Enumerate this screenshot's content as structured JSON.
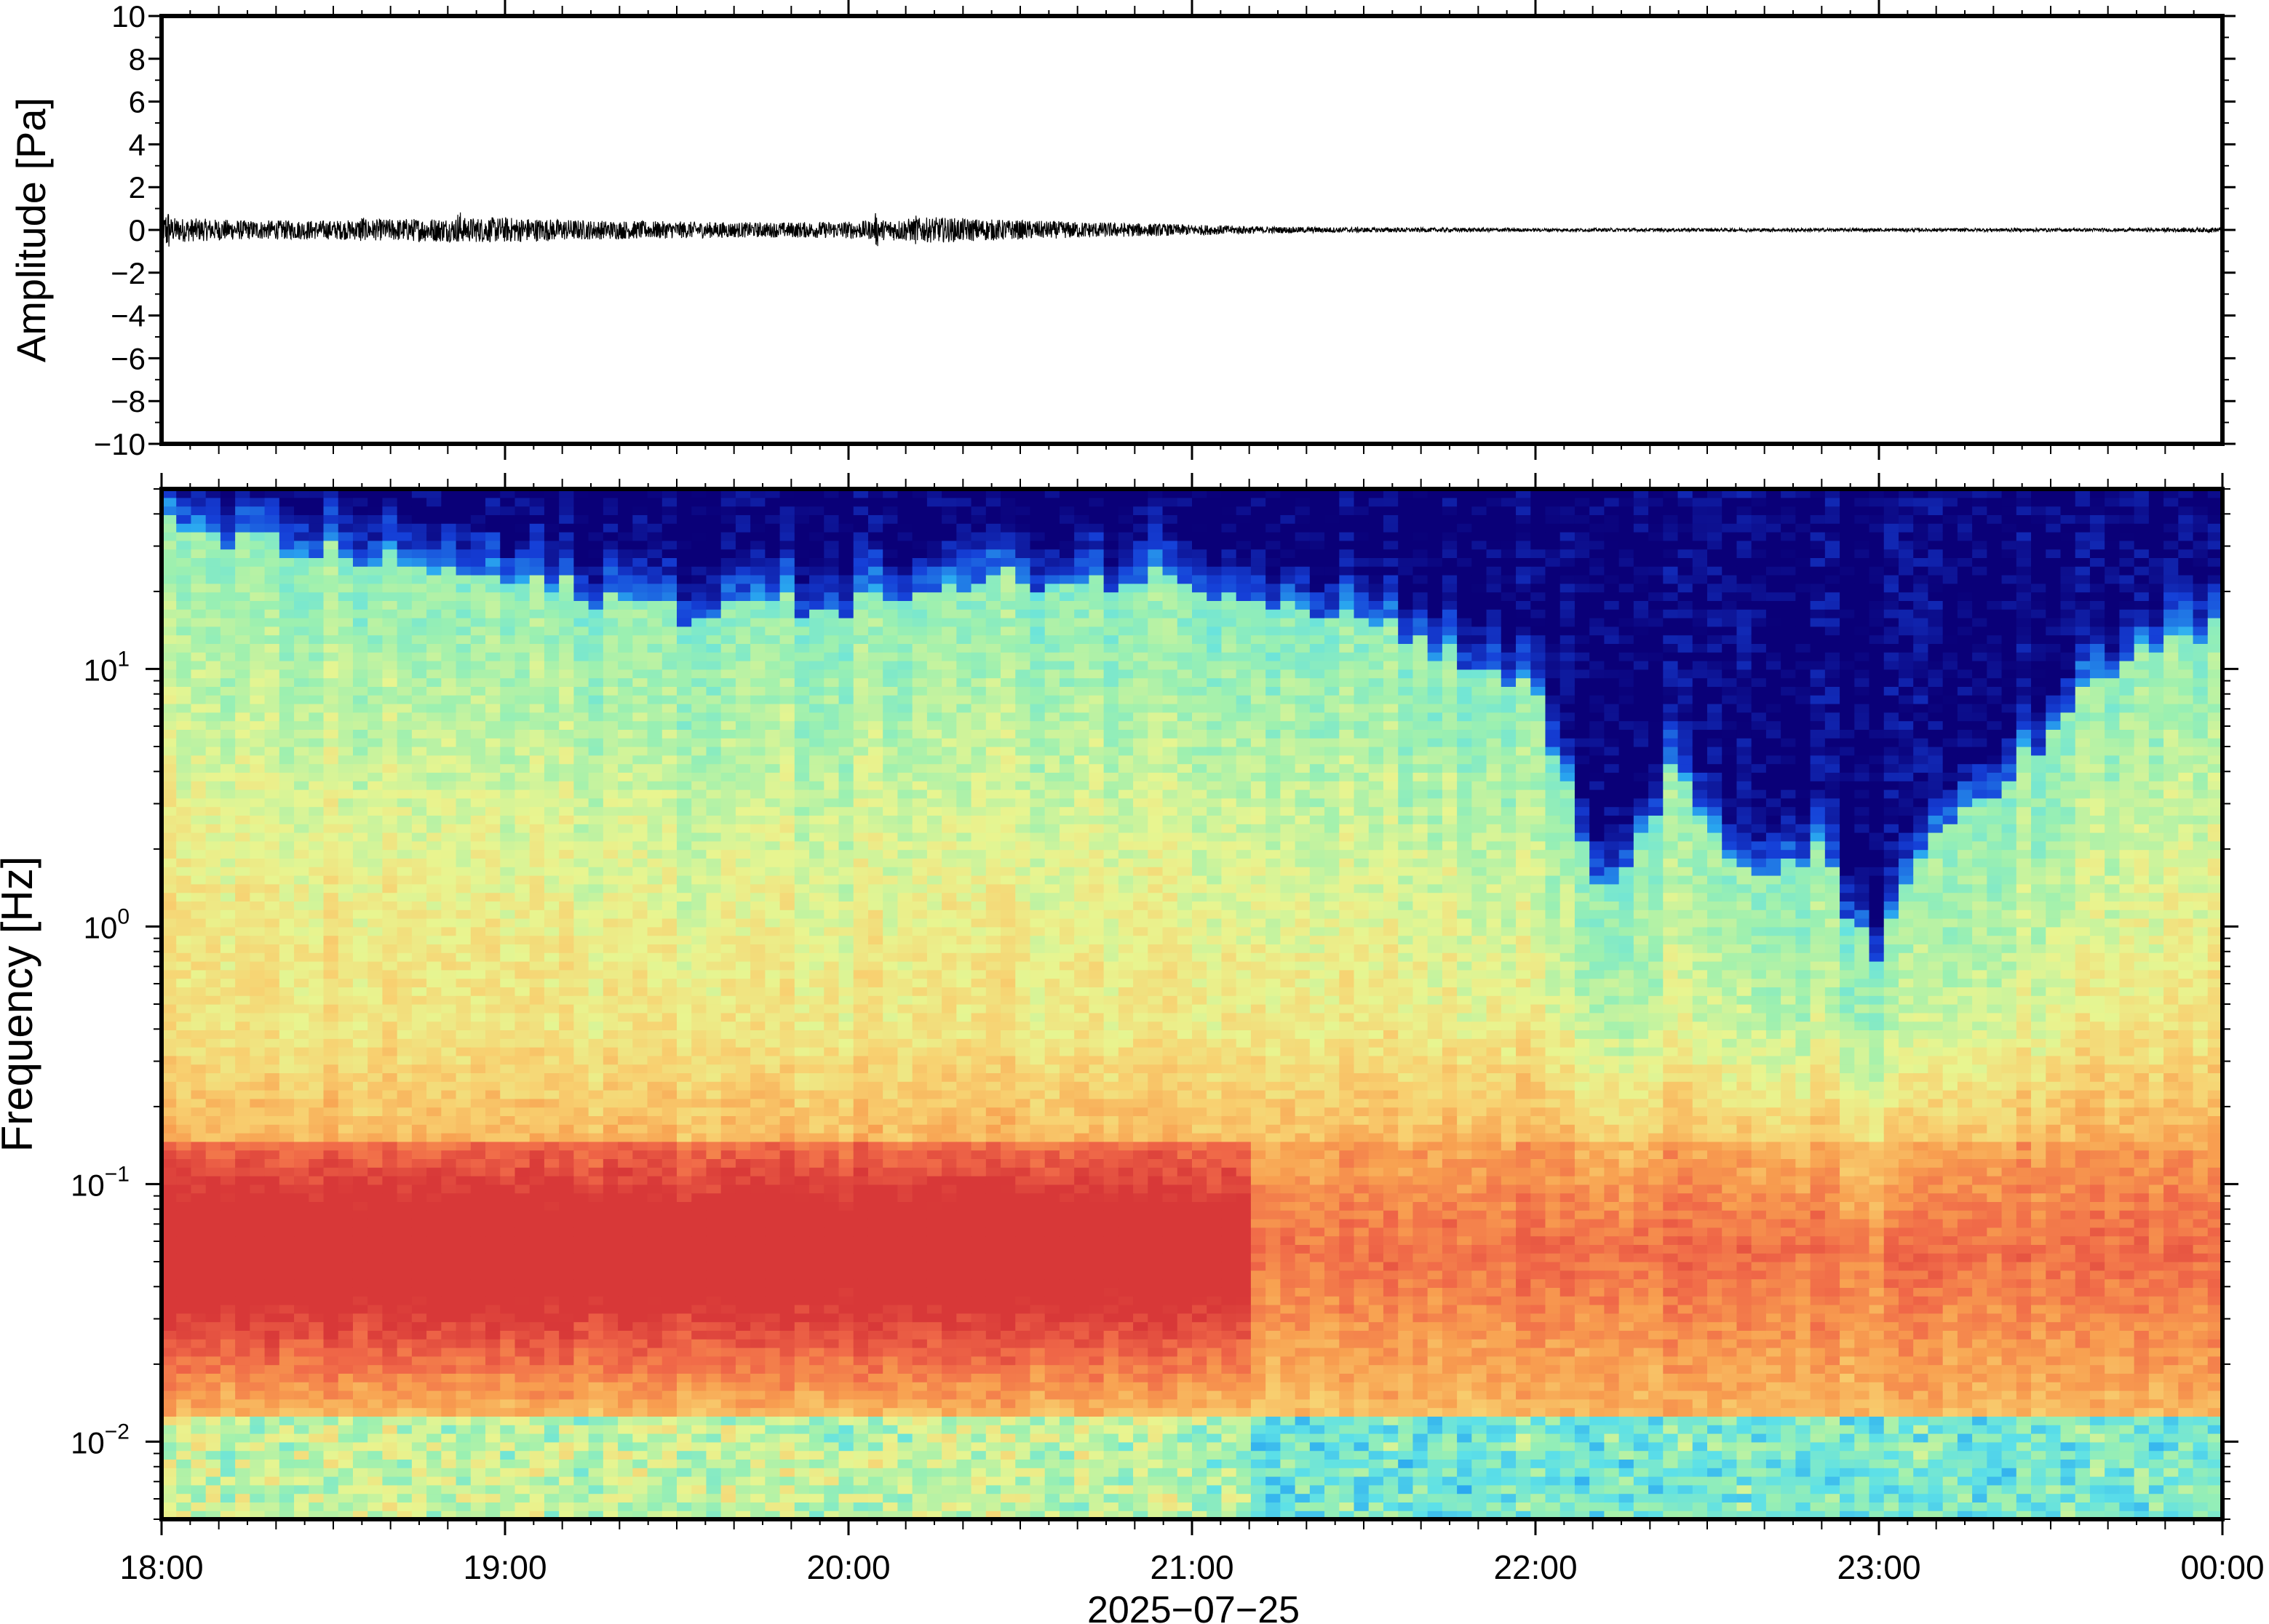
{
  "chart_data": [
    {
      "type": "line",
      "panel": "waveform",
      "ylabel": "Amplitude [Pa]",
      "ylim": [
        -10,
        10
      ],
      "yticks": [
        10,
        8,
        6,
        4,
        2,
        0,
        -2,
        -4,
        -6,
        -8,
        -10
      ],
      "ytick_labels": [
        "10",
        "8",
        "6",
        "4",
        "2",
        "0",
        "−2",
        "−4",
        "−6",
        "−8",
        "−10"
      ],
      "xlim": [
        "18:00",
        "00:00"
      ],
      "grid": false,
      "series": [
        {
          "x_hours_from_1800": [
            0.0,
            0.25,
            0.5,
            0.75,
            1.0,
            1.25,
            1.5,
            1.75,
            2.0,
            2.25,
            2.5,
            2.75,
            3.0,
            3.25,
            3.5,
            3.75,
            4.0,
            4.25,
            4.5,
            4.75,
            5.0,
            5.25,
            5.5,
            5.75,
            6.0
          ],
          "amplitude_envelope": [
            0.6,
            0.45,
            0.45,
            0.55,
            0.6,
            0.45,
            0.4,
            0.35,
            0.4,
            0.6,
            0.45,
            0.35,
            0.25,
            0.15,
            0.12,
            0.1,
            0.08,
            0.08,
            0.08,
            0.08,
            0.08,
            0.08,
            0.08,
            0.08,
            0.12
          ],
          "peak_events": [
            {
              "time": "18:01",
              "value": 1.0
            },
            {
              "time": "18:35",
              "value": 0.7
            },
            {
              "time": "18:52",
              "value": 0.9
            },
            {
              "time": "20:05",
              "value": 0.8
            },
            {
              "time": "20:12",
              "value": 0.7
            }
          ]
        }
      ]
    },
    {
      "type": "heatmap",
      "panel": "spectrogram",
      "ylabel": "Frequency [Hz]",
      "yscale": "log",
      "ylim": [
        0.005,
        50
      ],
      "ytick_labels": [
        {
          "base": "10",
          "exp": "1",
          "value": 10
        },
        {
          "base": "10",
          "exp": "0",
          "value": 1
        },
        {
          "base": "10",
          "exp": "−1",
          "value": 0.1
        },
        {
          "base": "10",
          "exp": "−2",
          "value": 0.01
        }
      ],
      "xlabel": "2025−07−25",
      "xtick_labels": [
        "18:00",
        "19:00",
        "20:00",
        "21:00",
        "22:00",
        "23:00",
        "00:00"
      ],
      "colormap": "jet",
      "colormap_stops": [
        "#0a0078",
        "#1540d8",
        "#2aa8f0",
        "#5ce0e8",
        "#9cf0b0",
        "#e8f590",
        "#f8d070",
        "#f8a050",
        "#f06848",
        "#d83838"
      ],
      "high_cutoff_profile": {
        "time_hours_from_1800": [
          0.0,
          0.5,
          1.0,
          1.5,
          2.0,
          2.5,
          3.0,
          3.5,
          3.8,
          4.0,
          4.2,
          4.4,
          4.6,
          4.8,
          5.0,
          5.2,
          5.4,
          5.6,
          5.8,
          6.0
        ],
        "cutoff_hz": [
          35,
          28,
          22,
          17,
          18,
          22,
          22,
          16,
          11,
          8,
          1.2,
          4,
          1.5,
          2,
          0.8,
          2.5,
          4,
          8,
          12,
          14
        ]
      },
      "low_freq_energy_band_hz": [
        0.02,
        0.15
      ],
      "low_freq_energy_strong_until": "21:10"
    }
  ]
}
